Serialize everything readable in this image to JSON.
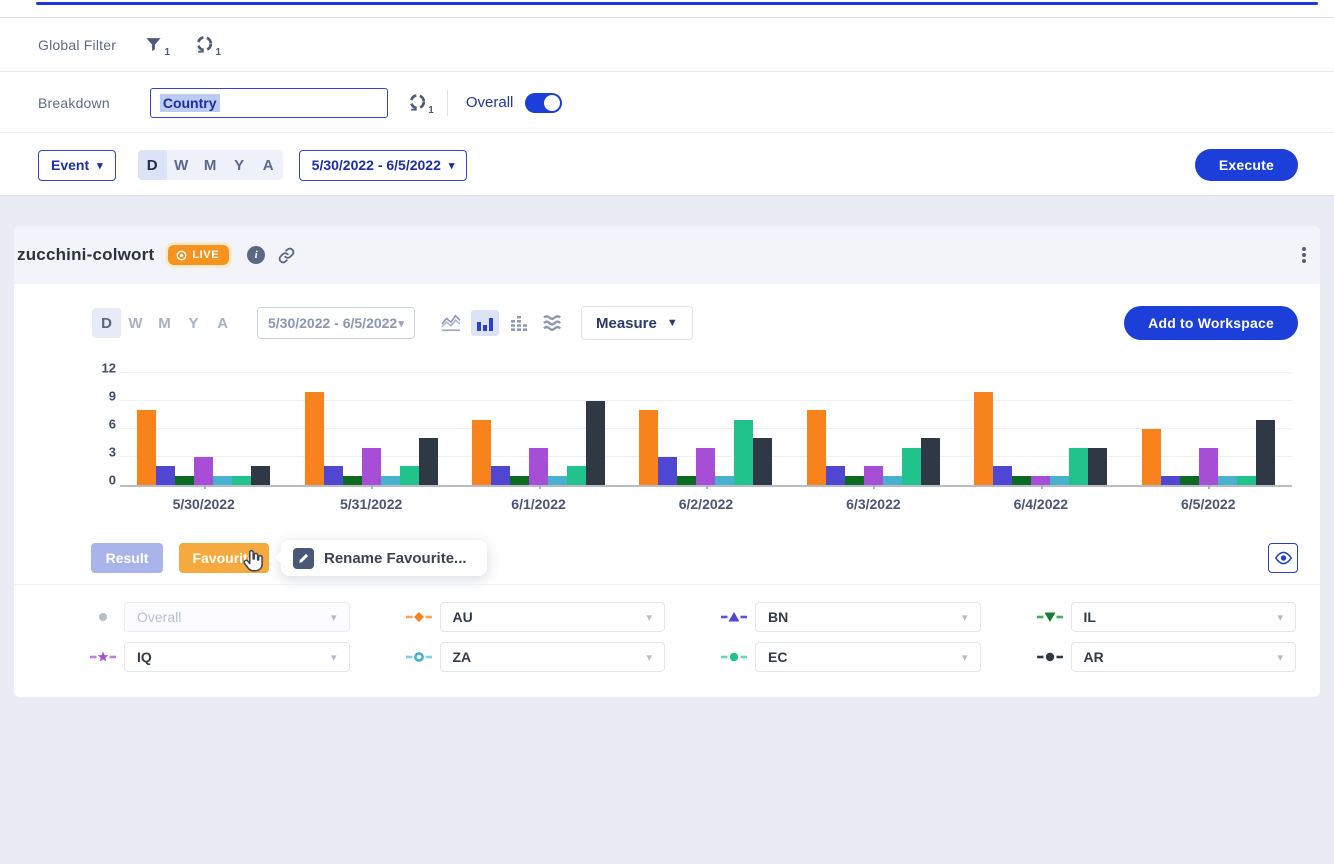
{
  "colors": {
    "accent": "#1b3fd8",
    "live_badge": "#f6921e",
    "result_button": "#a9b5ea",
    "favourite_button": "#f6a93f"
  },
  "filter_bar": {
    "global_filter_label": "Global Filter",
    "filter_icon_badge": "1",
    "breakdown_icon_badge": "1",
    "breakdown_label": "Breakdown",
    "breakdown_value": "Country",
    "overall_label": "Overall",
    "overall_toggle_on": true,
    "event_label": "Event",
    "granularities": [
      "D",
      "W",
      "M",
      "Y",
      "A"
    ],
    "selected_granularity": "D",
    "date_range": "5/30/2022 - 6/5/2022",
    "execute_label": "Execute"
  },
  "card": {
    "title": "zucchini-colwort",
    "live_label": "LIVE",
    "granularities": [
      "D",
      "W",
      "M",
      "Y",
      "A"
    ],
    "selected_granularity": "D",
    "date_range": "5/30/2022 - 6/5/2022",
    "chart_types": [
      "line",
      "bar",
      "histogram",
      "stacked"
    ],
    "selected_chart_type": "bar",
    "measure_label": "Measure",
    "add_to_workspace_label": "Add to Workspace",
    "result_label": "Result",
    "favourite_label": "Favourite",
    "tooltip_label": "Rename Favourite..."
  },
  "chart_data": {
    "type": "bar",
    "title": "",
    "categories": [
      "5/30/2022",
      "5/31/2022",
      "6/1/2022",
      "6/2/2022",
      "6/3/2022",
      "6/4/2022",
      "6/5/2022"
    ],
    "series": [
      {
        "name": "AU",
        "color": "#f8821c",
        "values": [
          8,
          10,
          7,
          8,
          8,
          10,
          6
        ]
      },
      {
        "name": "BN",
        "color": "#4f46d2",
        "values": [
          2,
          2,
          2,
          3,
          2,
          2,
          1
        ]
      },
      {
        "name": "IL",
        "color": "#0b6b21",
        "values": [
          1,
          1,
          1,
          1,
          1,
          1,
          1
        ]
      },
      {
        "name": "IQ",
        "color": "#a64fd6",
        "values": [
          3,
          4,
          4,
          4,
          2,
          1,
          4
        ]
      },
      {
        "name": "ZA",
        "color": "#48b1cd",
        "values": [
          1,
          1,
          1,
          1,
          1,
          1,
          1
        ]
      },
      {
        "name": "EC",
        "color": "#1fc38b",
        "values": [
          1,
          2,
          2,
          7,
          4,
          4,
          1
        ]
      },
      {
        "name": "AR",
        "color": "#2f3845",
        "values": [
          2,
          5,
          9,
          5,
          5,
          4,
          7
        ]
      }
    ],
    "ylim": [
      0,
      12
    ],
    "yticks": [
      0,
      3,
      6,
      9,
      12
    ],
    "grid": true,
    "legend_position": "bottom"
  },
  "legend": {
    "items": [
      {
        "label": "Overall",
        "marker": "dot",
        "color": "#b7bdcc",
        "dash_color": "#b7bdcc",
        "disabled": true
      },
      {
        "label": "AU",
        "marker": "diamond",
        "color": "#f8821c",
        "dash_color": "#f8a45c",
        "disabled": false
      },
      {
        "label": "BN",
        "marker": "triangle-up",
        "color": "#4f46d2",
        "dash_color": "#5a55d8",
        "disabled": false
      },
      {
        "label": "IL",
        "marker": "triangle-down",
        "color": "#1c7c35",
        "dash_color": "#3fae5e",
        "disabled": false
      },
      {
        "label": "IQ",
        "marker": "star",
        "color": "#a64fd6",
        "dash_color": "#c27fe3",
        "disabled": false
      },
      {
        "label": "ZA",
        "marker": "circle-open",
        "color": "#48b1cd",
        "dash_color": "#7fd0e4",
        "disabled": false
      },
      {
        "label": "EC",
        "marker": "circle",
        "color": "#1fc38b",
        "dash_color": "#6fd8a8",
        "disabled": false
      },
      {
        "label": "AR",
        "marker": "circle",
        "color": "#2f3845",
        "dash_color": "#2f3845",
        "disabled": false
      }
    ]
  }
}
